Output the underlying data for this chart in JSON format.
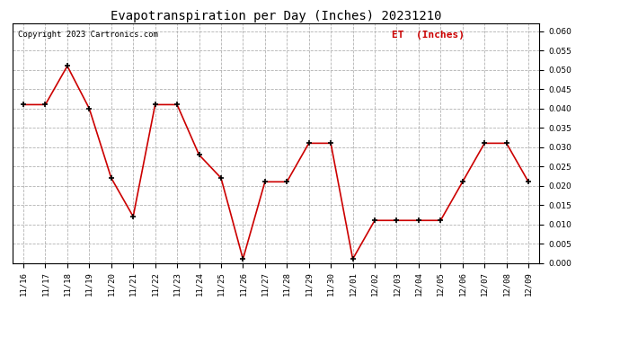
{
  "title": "Evapotranspiration per Day (Inches) 20231210",
  "copyright_text": "Copyright 2023 Cartronics.com",
  "legend_label": "ET  (Inches)",
  "dates": [
    "11/16",
    "11/17",
    "11/18",
    "11/19",
    "11/20",
    "11/21",
    "11/22",
    "11/23",
    "11/24",
    "11/25",
    "11/26",
    "11/27",
    "11/28",
    "11/29",
    "11/30",
    "12/01",
    "12/02",
    "12/03",
    "12/04",
    "12/05",
    "12/06",
    "12/07",
    "12/08",
    "12/09"
  ],
  "values": [
    0.041,
    0.041,
    0.051,
    0.04,
    0.022,
    0.012,
    0.041,
    0.041,
    0.028,
    0.022,
    0.001,
    0.021,
    0.021,
    0.031,
    0.031,
    0.001,
    0.011,
    0.011,
    0.011,
    0.011,
    0.021,
    0.031,
    0.031,
    0.021
  ],
  "line_color": "#cc0000",
  "marker_color": "#000000",
  "bg_color": "#ffffff",
  "grid_color": "#aaaaaa",
  "ylim": [
    0.0,
    0.062
  ],
  "yticks": [
    0.0,
    0.005,
    0.01,
    0.015,
    0.02,
    0.025,
    0.03,
    0.035,
    0.04,
    0.045,
    0.05,
    0.055,
    0.06
  ],
  "title_fontsize": 10,
  "copyright_fontsize": 6.5,
  "legend_fontsize": 8,
  "tick_fontsize": 6.5
}
